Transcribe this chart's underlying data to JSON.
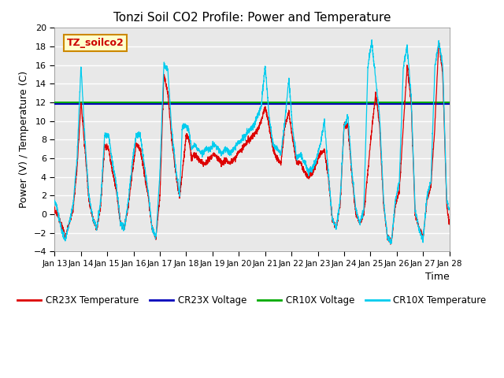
{
  "title": "Tonzi Soil CO2 Profile: Power and Temperature",
  "xlabel": "Time",
  "ylabel": "Power (V) / Temperature (C)",
  "ylim": [
    -4,
    20
  ],
  "xlim": [
    0,
    15
  ],
  "xtick_labels": [
    "Jan 13",
    "Jan 14",
    "Jan 15",
    "Jan 16",
    "Jan 17",
    "Jan 18",
    "Jan 19",
    "Jan 20",
    "Jan 21",
    "Jan 22",
    "Jan 23",
    "Jan 24",
    "Jan 25",
    "Jan 26",
    "Jan 27",
    "Jan 28"
  ],
  "cr23x_voltage_value": 11.85,
  "cr10x_voltage_value": 12.0,
  "cr23x_temp_color": "#dd0000",
  "cr23x_voltage_color": "#0000bb",
  "cr10x_voltage_color": "#00aa00",
  "cr10x_temp_color": "#00ccee",
  "bg_color": "#e8e8e8",
  "fig_bg_color": "#ffffff",
  "label_box_text": "TZ_soilco2",
  "label_box_bg": "#ffffcc",
  "label_box_edge": "#cc8800",
  "legend_labels": [
    "CR23X Temperature",
    "CR23X Voltage",
    "CR10X Voltage",
    "CR10X Temperature"
  ],
  "cr23x_keypoints_x": [
    0.0,
    0.1,
    0.25,
    0.4,
    0.55,
    0.7,
    0.85,
    1.0,
    1.15,
    1.3,
    1.45,
    1.6,
    1.75,
    1.9,
    2.05,
    2.2,
    2.35,
    2.5,
    2.65,
    2.8,
    2.95,
    3.1,
    3.25,
    3.4,
    3.55,
    3.7,
    3.85,
    4.0,
    4.15,
    4.3,
    4.45,
    4.6,
    4.75,
    4.85,
    5.0,
    5.1,
    5.2,
    5.3,
    5.45,
    5.6,
    5.75,
    5.9,
    6.05,
    6.2,
    6.35,
    6.5,
    6.65,
    6.8,
    6.95,
    7.1,
    7.25,
    7.4,
    7.55,
    7.7,
    7.85,
    8.0,
    8.15,
    8.3,
    8.45,
    8.6,
    8.75,
    8.9,
    9.05,
    9.2,
    9.35,
    9.5,
    9.65,
    9.8,
    9.95,
    10.1,
    10.25,
    10.4,
    10.55,
    10.7,
    10.85,
    11.0,
    11.15,
    11.3,
    11.45,
    11.6,
    11.75,
    11.9,
    12.05,
    12.2,
    12.35,
    12.5,
    12.65,
    12.8,
    12.95,
    13.1,
    13.25,
    13.4,
    13.55,
    13.7,
    13.85,
    14.0,
    14.15,
    14.3,
    14.45,
    14.6,
    14.75,
    14.9,
    15.0
  ],
  "cr23x_keypoints_y": [
    0.5,
    0.0,
    -1.0,
    -2.5,
    -1.0,
    0.5,
    5.0,
    12.0,
    7.0,
    1.5,
    -0.5,
    -1.5,
    1.0,
    7.5,
    7.0,
    4.5,
    2.5,
    -1.0,
    -1.5,
    1.0,
    4.5,
    7.5,
    7.0,
    4.5,
    2.0,
    -1.5,
    -2.5,
    2.0,
    15.0,
    13.0,
    8.0,
    4.5,
    1.8,
    4.5,
    8.5,
    8.0,
    6.0,
    6.5,
    6.0,
    5.5,
    5.5,
    6.0,
    6.5,
    6.0,
    5.5,
    5.8,
    5.5,
    5.8,
    6.5,
    7.0,
    7.5,
    8.0,
    8.5,
    9.0,
    10.0,
    11.5,
    9.5,
    7.0,
    6.0,
    5.5,
    9.5,
    11.0,
    8.0,
    5.5,
    5.5,
    4.5,
    4.0,
    4.5,
    5.5,
    6.5,
    7.0,
    4.0,
    -0.5,
    -1.5,
    1.0,
    9.5,
    9.5,
    4.0,
    0.0,
    -1.0,
    0.0,
    4.5,
    9.0,
    13.0,
    9.5,
    1.0,
    -2.5,
    -3.0,
    1.0,
    2.5,
    9.5,
    16.0,
    12.0,
    0.0,
    -1.5,
    -2.5,
    1.5,
    3.0,
    9.5,
    18.5,
    15.0,
    1.0,
    -1.0
  ],
  "cr10x_keypoints_y": [
    1.5,
    0.5,
    -1.5,
    -2.8,
    -1.0,
    1.0,
    6.0,
    16.0,
    8.0,
    2.0,
    -0.5,
    -1.5,
    1.5,
    8.5,
    8.5,
    5.5,
    3.0,
    -1.0,
    -1.5,
    1.5,
    5.5,
    8.5,
    8.5,
    5.5,
    2.5,
    -1.5,
    -2.5,
    4.5,
    16.0,
    15.5,
    9.0,
    5.0,
    2.0,
    9.5,
    9.5,
    9.0,
    7.0,
    7.5,
    7.0,
    6.5,
    7.0,
    7.0,
    7.5,
    7.0,
    6.5,
    7.0,
    6.5,
    7.0,
    7.5,
    8.0,
    8.5,
    9.0,
    9.5,
    10.5,
    11.5,
    16.0,
    10.5,
    7.5,
    7.0,
    6.5,
    10.0,
    14.5,
    9.0,
    6.0,
    6.5,
    5.5,
    4.5,
    5.0,
    6.0,
    7.5,
    10.0,
    4.5,
    -0.5,
    -1.5,
    1.5,
    9.5,
    10.5,
    4.5,
    0.5,
    -1.0,
    0.5,
    15.8,
    18.5,
    14.5,
    10.5,
    1.5,
    -2.5,
    -3.0,
    1.5,
    3.5,
    15.8,
    18.0,
    12.5,
    0.5,
    -1.5,
    -2.8,
    2.0,
    3.5,
    15.8,
    18.5,
    16.0,
    1.5,
    0.4
  ]
}
